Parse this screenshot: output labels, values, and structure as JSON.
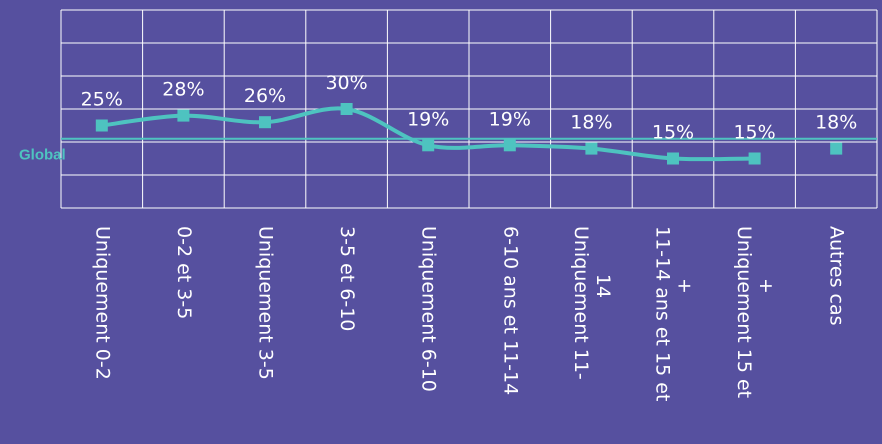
{
  "chart_data": {
    "type": "line",
    "categories": [
      "Uniquement 0-2",
      "0-2 et 3-5",
      "Uniquement 3-5",
      "3-5 et 6-10",
      "Uniquement 6-10",
      "6-10 ans et 11-14",
      "Uniquement 11-14",
      "11-14 ans et 15 et +",
      "Uniquement 15 et +",
      "Autres cas"
    ],
    "category_lines": [
      [
        "Uniquement 0-2"
      ],
      [
        "0-2 et 3-5"
      ],
      [
        "Uniquement 3-5"
      ],
      [
        "3-5 et 6-10"
      ],
      [
        "Uniquement 6-10"
      ],
      [
        "6-10 ans et 11-14"
      ],
      [
        "Uniquement 11-",
        "14"
      ],
      [
        "11-14 ans et 15 et",
        "+"
      ],
      [
        "Uniquement 15 et",
        "+"
      ],
      [
        "Autres cas"
      ]
    ],
    "values": [
      25,
      28,
      26,
      30,
      19,
      19,
      18,
      15,
      15,
      18
    ],
    "data_labels": [
      "25%",
      "28%",
      "26%",
      "30%",
      "19%",
      "19%",
      "18%",
      "15%",
      "15%",
      "18%"
    ],
    "connected_points": 9,
    "reference_line": {
      "label": "Global",
      "value": 21
    },
    "ylim": [
      0,
      60
    ],
    "grid": true,
    "legend": "none",
    "colors": {
      "background": "#56509f",
      "series": "#4ec3c0",
      "grid": "#ffffff",
      "text": "#ffffff"
    }
  }
}
